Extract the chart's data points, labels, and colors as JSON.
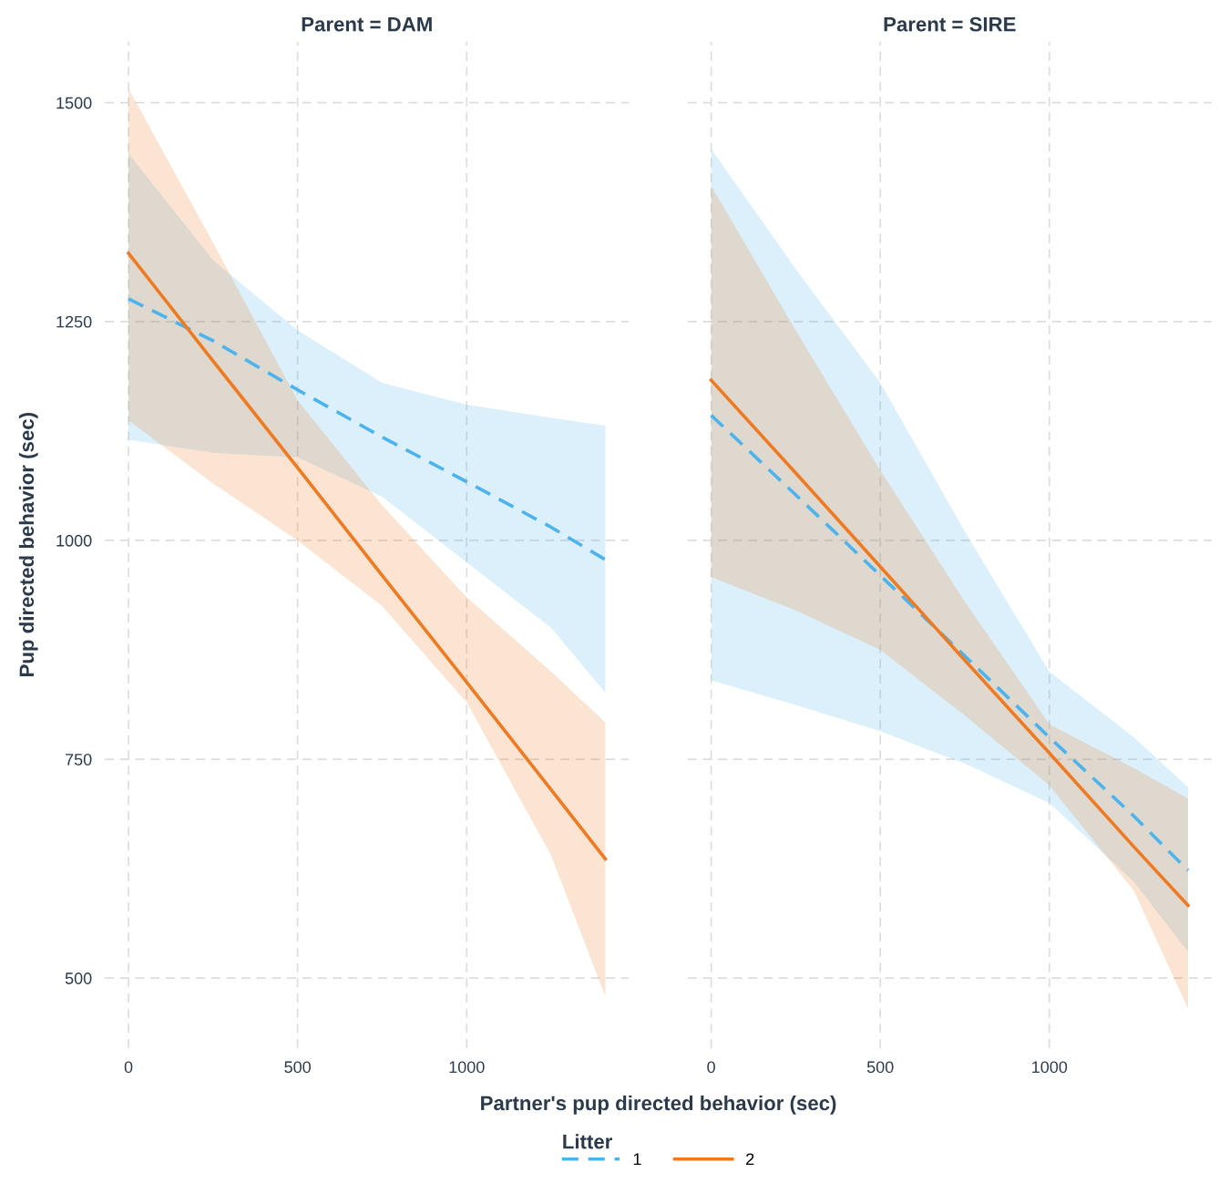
{
  "chart_data": [
    {
      "type": "line",
      "title": "Parent = DAM",
      "xlabel": "Partner's pup directed behavior (sec)",
      "ylabel": "Pup directed behavior (sec)",
      "legend_title": "Litter",
      "legend": "bottom",
      "grid": true,
      "xlim": [
        -70,
        1480
      ],
      "xticks": [
        0,
        500,
        1000
      ],
      "ylim": [
        420,
        1570
      ],
      "yticks": [
        500,
        750,
        1000,
        1250,
        1500
      ],
      "series": [
        {
          "name": "1",
          "color": "#4db3ec",
          "line_style": "dashed",
          "x": [
            0,
            250,
            500,
            750,
            1000,
            1250,
            1410
          ],
          "values": [
            1276,
            1228,
            1172,
            1118,
            1067,
            1015,
            978
          ],
          "lower": [
            1115,
            1100,
            1095,
            1050,
            975,
            900,
            826
          ],
          "upper": [
            1442,
            1320,
            1240,
            1180,
            1155,
            1140,
            1131
          ]
        },
        {
          "name": "2",
          "color": "#ee7a22",
          "line_style": "solid",
          "x": [
            0,
            250,
            500,
            750,
            1000,
            1250,
            1410
          ],
          "values": [
            1328,
            1205,
            1083,
            960,
            838,
            715,
            636
          ],
          "lower": [
            1137,
            1065,
            1000,
            925,
            815,
            640,
            479
          ],
          "upper": [
            1516,
            1340,
            1160,
            1040,
            935,
            850,
            792
          ]
        }
      ]
    },
    {
      "type": "line",
      "title": "Parent = SIRE",
      "tick_labels": "x",
      "grid": true,
      "xlim": [
        -70,
        1480
      ],
      "xticks": [
        0,
        500,
        1000
      ],
      "ylim": [
        420,
        1570
      ],
      "yticks": [
        500,
        750,
        1000,
        1250,
        1500
      ],
      "series": [
        {
          "name": "1",
          "color": "#4db3ec",
          "line_style": "dashed",
          "x": [
            0,
            250,
            500,
            750,
            1000,
            1250,
            1410
          ],
          "values": [
            1143,
            1052,
            960,
            868,
            775,
            685,
            623
          ],
          "lower": [
            840,
            812,
            782,
            745,
            700,
            610,
            530
          ],
          "upper": [
            1447,
            1310,
            1180,
            1010,
            850,
            775,
            718
          ]
        },
        {
          "name": "2",
          "color": "#ee7a22",
          "line_style": "solid",
          "x": [
            0,
            250,
            500,
            750,
            1000,
            1250,
            1410
          ],
          "values": [
            1183,
            1077,
            970,
            863,
            757,
            650,
            583
          ],
          "lower": [
            958,
            920,
            875,
            800,
            720,
            600,
            465
          ],
          "upper": [
            1405,
            1240,
            1080,
            930,
            790,
            740,
            705
          ]
        }
      ]
    }
  ]
}
